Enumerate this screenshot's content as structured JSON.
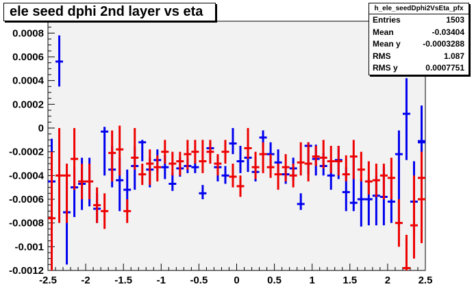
{
  "title": "ele seed dphi 2nd layer vs eta",
  "stats": {
    "name": "h_ele_seedDphi2VsEta_pfx",
    "rows": [
      {
        "label": "Entries",
        "value": "1503"
      },
      {
        "label": "Mean",
        "value": "-0.03404"
      },
      {
        "label": "Mean y",
        "value": "-0.0003288"
      },
      {
        "label": "RMS",
        "value": "1.087"
      },
      {
        "label": "RMS y",
        "value": "0.0007751"
      }
    ]
  },
  "chart_data": {
    "type": "scatter",
    "title": "ele seed dphi 2nd layer vs eta",
    "xlabel": "",
    "ylabel": "",
    "xlim": [
      -2.5,
      2.5
    ],
    "ylim": [
      -0.0012,
      0.0009
    ],
    "x_ticks": [
      -2.5,
      -2,
      -1.5,
      -1,
      -0.5,
      0,
      0.5,
      1,
      1.5,
      2,
      2.5
    ],
    "x_tick_labels": [
      "-2.5",
      "-2",
      "-1.5",
      "-1",
      "-0.5",
      "0",
      "0.5",
      "1",
      "1.5",
      "2",
      "2.5"
    ],
    "y_ticks": [
      -0.0012,
      -0.001,
      -0.0008,
      -0.0006,
      -0.0004,
      -0.0002,
      0,
      0.0002,
      0.0004,
      0.0006,
      0.0008
    ],
    "y_tick_labels": [
      "-0.0012",
      "-0.001",
      "-0.0008",
      "-0.0006",
      "-0.0004",
      "-0.0002",
      "0",
      "0.0002",
      "0.0004",
      "0.0006",
      "0.0008"
    ],
    "colors": {
      "frame_bg": "#f2f2f2",
      "blue": "#0000ee",
      "red": "#ee0000"
    },
    "series": [
      {
        "color": "blue",
        "points": [
          {
            "x": -2.45,
            "y": -0.00045,
            "ylo": -0.00061,
            "yhi": -9e-05
          },
          {
            "x": -2.35,
            "y": 0.00056,
            "ylo": 0.00035,
            "yhi": 0.00078
          },
          {
            "x": -2.25,
            "y": -0.00071,
            "ylo": -0.00115,
            "yhi": -0.00045
          },
          {
            "x": -2.15,
            "y": -0.0005,
            "ylo": -0.00075,
            "yhi": -0.00033
          },
          {
            "x": -2.05,
            "y": -0.00047,
            "ylo": -0.00069,
            "yhi": -0.00025
          },
          {
            "x": -1.95,
            "y": -0.00045,
            "ylo": -0.00066,
            "yhi": -0.00025
          },
          {
            "x": -1.85,
            "y": -0.00068,
            "ylo": -0.0008,
            "yhi": -0.00055
          },
          {
            "x": -1.75,
            "y": -3e-05,
            "ylo": -0.0004,
            "yhi": 1e-05
          },
          {
            "x": -1.65,
            "y": -0.00035,
            "ylo": -0.0005,
            "yhi": -0.00015
          },
          {
            "x": -1.55,
            "y": -0.00044,
            "ylo": -0.0007,
            "yhi": -0.00025
          },
          {
            "x": -1.45,
            "y": -0.00052,
            "ylo": -0.0007,
            "yhi": -0.00035
          },
          {
            "x": -1.35,
            "y": -0.00032,
            "ylo": -0.00052,
            "yhi": -0.00016
          },
          {
            "x": -1.25,
            "y": -0.00012,
            "ylo": -0.00028,
            "yhi": -0.0001
          },
          {
            "x": -1.15,
            "y": -0.00035,
            "ylo": -0.0005,
            "yhi": -0.00025
          },
          {
            "x": -1.05,
            "y": -0.00027,
            "ylo": -0.00038,
            "yhi": -0.00018
          },
          {
            "x": -0.95,
            "y": -0.00033,
            "ylo": -0.00043,
            "yhi": -0.00023
          },
          {
            "x": -0.85,
            "y": -0.00047,
            "ylo": -0.00053,
            "yhi": -0.00038
          },
          {
            "x": -0.75,
            "y": -0.00034,
            "ylo": -0.00041,
            "yhi": -0.00025
          },
          {
            "x": -0.65,
            "y": -0.00032,
            "ylo": -0.00038,
            "yhi": -0.00025
          },
          {
            "x": -0.55,
            "y": -0.00033,
            "ylo": -0.00038,
            "yhi": -0.00028
          },
          {
            "x": -0.45,
            "y": -0.00055,
            "ylo": -0.0006,
            "yhi": -0.00048
          },
          {
            "x": -0.35,
            "y": -0.00017,
            "ylo": -0.00022,
            "yhi": -0.00012
          },
          {
            "x": -0.25,
            "y": -0.00033,
            "ylo": -0.00045,
            "yhi": -0.00023
          },
          {
            "x": -0.15,
            "y": -0.0004,
            "ylo": -0.00047,
            "yhi": -0.00032
          },
          {
            "x": -0.05,
            "y": -0.00013,
            "ylo": -0.00022,
            "yhi": -0.0
          },
          {
            "x": 0.05,
            "y": -0.00028,
            "ylo": -0.00038,
            "yhi": -0.00015
          },
          {
            "x": 0.15,
            "y": -0.00025,
            "ylo": -0.00037,
            "yhi": -0.00015
          },
          {
            "x": 0.25,
            "y": -0.00037,
            "ylo": -0.00045,
            "yhi": -0.00025
          },
          {
            "x": 0.35,
            "y": -8e-05,
            "ylo": -0.00018,
            "yhi": -2e-05
          },
          {
            "x": 0.45,
            "y": -0.00022,
            "ylo": -0.00032,
            "yhi": -0.00012
          },
          {
            "x": 0.55,
            "y": -0.00029,
            "ylo": -0.0004,
            "yhi": -0.00018
          },
          {
            "x": 0.65,
            "y": -0.00039,
            "ylo": -0.00047,
            "yhi": -0.00032
          },
          {
            "x": 0.75,
            "y": -0.00034,
            "ylo": -0.00044,
            "yhi": -0.00025
          },
          {
            "x": 0.85,
            "y": -0.00064,
            "ylo": -0.00069,
            "yhi": -0.00055
          },
          {
            "x": 0.95,
            "y": -0.00015,
            "ylo": -0.00039,
            "yhi": -0.00012
          },
          {
            "x": 1.05,
            "y": -0.00026,
            "ylo": -0.0004,
            "yhi": -0.00014
          },
          {
            "x": 1.15,
            "y": -0.00032,
            "ylo": -0.0004,
            "yhi": -0.00021
          },
          {
            "x": 1.25,
            "y": -0.0004,
            "ylo": -0.00052,
            "yhi": -0.0003
          },
          {
            "x": 1.35,
            "y": -0.00027,
            "ylo": -0.00043,
            "yhi": -0.00015
          },
          {
            "x": 1.45,
            "y": -0.00054,
            "ylo": -0.0007,
            "yhi": -0.00033
          },
          {
            "x": 1.55,
            "y": -0.00063,
            "ylo": -0.0007,
            "yhi": -0.00025
          },
          {
            "x": 1.65,
            "y": -0.0006,
            "ylo": -0.00083,
            "yhi": -0.00043
          },
          {
            "x": 1.75,
            "y": -0.0006,
            "ylo": -0.00082,
            "yhi": -0.00043
          },
          {
            "x": 1.85,
            "y": -0.00057,
            "ylo": -0.00082,
            "yhi": -0.0004
          },
          {
            "x": 1.95,
            "y": -0.00058,
            "ylo": -0.00082,
            "yhi": -0.00033
          },
          {
            "x": 2.05,
            "y": -0.00062,
            "ylo": -0.0008,
            "yhi": -0.00042
          },
          {
            "x": 2.15,
            "y": -0.00022,
            "ylo": -0.00083,
            "yhi": -2e-05
          },
          {
            "x": 2.25,
            "y": 0.00012,
            "ylo": -0.00027,
            "yhi": 0.00042
          },
          {
            "x": 2.35,
            "y": -0.00062,
            "ylo": -0.0009,
            "yhi": -0.00028
          },
          {
            "x": 2.45,
            "y": -0.00012,
            "ylo": -0.00025,
            "yhi": 0.00019
          },
          {
            "x": 2.45,
            "y": -0.00011,
            "ylo": -0.0002,
            "yhi": -5e-05
          }
        ]
      },
      {
        "color": "red",
        "points": [
          {
            "x": -2.45,
            "y": -0.00076,
            "ylo": -0.0012,
            "yhi": -0.0002
          },
          {
            "x": -2.35,
            "y": -0.0004,
            "ylo": -0.0008,
            "yhi": -0.0
          },
          {
            "x": -2.25,
            "y": -0.0004,
            "ylo": -0.0008,
            "yhi": -0.0003
          },
          {
            "x": -2.15,
            "y": -0.00026,
            "ylo": -0.00052,
            "yhi": -0.0
          },
          {
            "x": -2.05,
            "y": -0.00045,
            "ylo": -0.0006,
            "yhi": -0.0003
          },
          {
            "x": -1.95,
            "y": -0.00045,
            "ylo": -0.0006,
            "yhi": -0.0003
          },
          {
            "x": -1.85,
            "y": -0.00065,
            "ylo": -0.0008,
            "yhi": -0.0005
          },
          {
            "x": -1.75,
            "y": -0.0007,
            "ylo": -0.00085,
            "yhi": -0.00055
          },
          {
            "x": -1.65,
            "y": -0.00021,
            "ylo": -0.00045,
            "yhi": -2e-05
          },
          {
            "x": -1.55,
            "y": -0.00018,
            "ylo": -0.0004,
            "yhi": 2e-05
          },
          {
            "x": -1.45,
            "y": -0.0007,
            "ylo": -0.0008,
            "yhi": -0.0006
          },
          {
            "x": -1.35,
            "y": -0.00025,
            "ylo": -0.00035,
            "yhi": -0.0
          },
          {
            "x": -1.25,
            "y": -0.00039,
            "ylo": -0.00048,
            "yhi": -0.0003
          },
          {
            "x": -1.15,
            "y": -0.0003,
            "ylo": -0.00048,
            "yhi": -0.00018
          },
          {
            "x": -1.05,
            "y": -0.00033,
            "ylo": -0.00045,
            "yhi": -0.00023
          },
          {
            "x": -0.95,
            "y": -0.0002,
            "ylo": -0.0003,
            "yhi": -0.0001
          },
          {
            "x": -0.85,
            "y": -0.0003,
            "ylo": -0.0004,
            "yhi": -0.0002
          },
          {
            "x": -0.75,
            "y": -0.00028,
            "ylo": -0.0004,
            "yhi": -0.0002
          },
          {
            "x": -0.65,
            "y": -0.00022,
            "ylo": -0.00035,
            "yhi": -0.0001
          },
          {
            "x": -0.55,
            "y": -0.0002,
            "ylo": -0.0003,
            "yhi": -0.0001
          },
          {
            "x": -0.45,
            "y": -0.00028,
            "ylo": -0.00038,
            "yhi": -0.0001
          },
          {
            "x": -0.35,
            "y": -0.0002,
            "ylo": -0.0003,
            "yhi": -0.0001
          },
          {
            "x": -0.25,
            "y": -0.0003,
            "ylo": -0.0004,
            "yhi": -0.00022
          },
          {
            "x": -0.15,
            "y": -0.0002,
            "ylo": -0.0003,
            "yhi": -0.0001
          },
          {
            "x": -0.05,
            "y": -0.00041,
            "ylo": -0.0005,
            "yhi": -0.0003
          },
          {
            "x": 0.05,
            "y": -0.00049,
            "ylo": -0.00058,
            "yhi": -0.0004
          },
          {
            "x": 0.15,
            "y": -0.00017,
            "ylo": -0.00026,
            "yhi": -0.0
          },
          {
            "x": 0.25,
            "y": -0.00033,
            "ylo": -0.00043,
            "yhi": -0.0002
          },
          {
            "x": 0.35,
            "y": -0.00022,
            "ylo": -0.00038,
            "yhi": -0.00012
          },
          {
            "x": 0.45,
            "y": -0.00033,
            "ylo": -0.00042,
            "yhi": -0.00022
          },
          {
            "x": 0.55,
            "y": -0.00039,
            "ylo": -0.00052,
            "yhi": -0.0003
          },
          {
            "x": 0.65,
            "y": -0.00033,
            "ylo": -0.00045,
            "yhi": -0.00022
          },
          {
            "x": 0.75,
            "y": -0.0004,
            "ylo": -0.0005,
            "yhi": -0.0003
          },
          {
            "x": 0.85,
            "y": -0.00029,
            "ylo": -0.0004,
            "yhi": -0.00012
          },
          {
            "x": 0.95,
            "y": -0.0003,
            "ylo": -0.00045,
            "yhi": -0.00012
          },
          {
            "x": 1.05,
            "y": -0.00024,
            "ylo": -0.00032,
            "yhi": -0.00015
          },
          {
            "x": 1.15,
            "y": -0.00025,
            "ylo": -0.00034,
            "yhi": -0.0001
          },
          {
            "x": 1.25,
            "y": -0.00028,
            "ylo": -0.00038,
            "yhi": -0.00015
          },
          {
            "x": 1.35,
            "y": -0.00028,
            "ylo": -0.0004,
            "yhi": -0.00015
          },
          {
            "x": 1.45,
            "y": -0.00039,
            "ylo": -0.00045,
            "yhi": -0.00023
          },
          {
            "x": 1.55,
            "y": -0.00024,
            "ylo": -0.00043,
            "yhi": -0.0001
          },
          {
            "x": 1.65,
            "y": -0.00035,
            "ylo": -0.00045,
            "yhi": -0.0002
          },
          {
            "x": 1.75,
            "y": -0.00045,
            "ylo": -0.00056,
            "yhi": -0.00028
          },
          {
            "x": 1.85,
            "y": -0.00044,
            "ylo": -0.00058,
            "yhi": -0.0003
          },
          {
            "x": 1.95,
            "y": -0.0004,
            "ylo": -0.0006,
            "yhi": -0.0003
          },
          {
            "x": 2.05,
            "y": -0.00042,
            "ylo": -0.0006,
            "yhi": -0.00025
          },
          {
            "x": 2.15,
            "y": -0.0008,
            "ylo": -0.001,
            "yhi": -0.0006
          },
          {
            "x": 2.25,
            "y": -0.00118,
            "ylo": -0.0012,
            "yhi": -0.0009
          },
          {
            "x": 2.35,
            "y": -0.00082,
            "ylo": -0.0011,
            "yhi": -0.0004
          },
          {
            "x": 2.45,
            "y": -0.00042,
            "ylo": -0.0006,
            "yhi": -0.0002
          },
          {
            "x": 2.45,
            "y": -0.0006,
            "ylo": -0.00097,
            "yhi": -0.0003
          }
        ]
      }
    ]
  }
}
